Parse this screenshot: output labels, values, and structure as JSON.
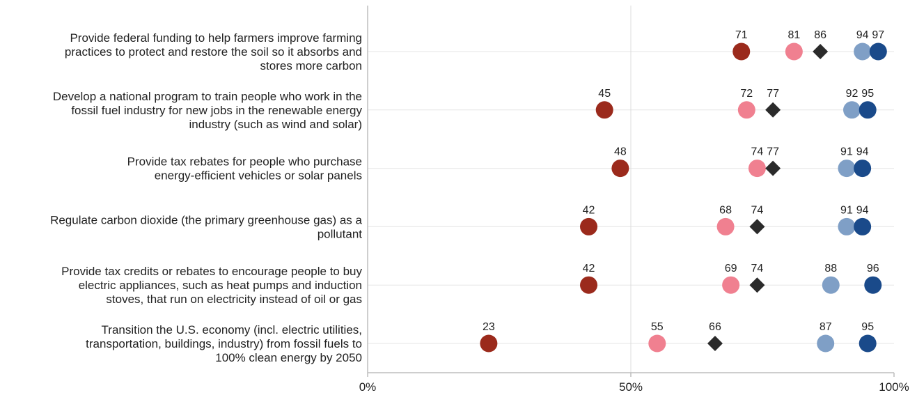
{
  "chart_data": {
    "type": "scatter",
    "title": "",
    "xlabel": "",
    "ylabel": "",
    "xlim": [
      0,
      100
    ],
    "x_ticks": [
      "0%",
      "50%",
      "100%"
    ],
    "grid": true,
    "legend": "none",
    "categories": [
      [
        "Provide federal funding to help farmers improve farming",
        "practices to protect and restore the soil so it absorbs and",
        "stores more carbon"
      ],
      [
        "Develop a national program to train people who work in the",
        "fossil fuel industry for new jobs in the renewable energy",
        "industry (such as wind and solar)"
      ],
      [
        "Provide tax rebates for people who purchase",
        "energy-efficient vehicles or solar panels"
      ],
      [
        "Regulate carbon dioxide (the primary greenhouse gas) as a",
        "pollutant"
      ],
      [
        "Provide tax credits or rebates to encourage people to buy",
        "electric appliances, such as heat pumps and induction",
        "stoves, that run on electricity instead of oil or gas"
      ],
      [
        "Transition the U.S. economy (incl. electric utilities,",
        "transportation, buildings, industry) from fossil fuels to",
        "100% clean energy by 2050"
      ]
    ],
    "series": [
      {
        "marker": "circle",
        "color": "#9b2a1c",
        "values": [
          71,
          45,
          48,
          42,
          42,
          23
        ]
      },
      {
        "marker": "circle",
        "color": "#f08090",
        "values": [
          81,
          72,
          74,
          68,
          69,
          55
        ]
      },
      {
        "marker": "diamond",
        "color": "#2b2b2b",
        "values": [
          86,
          77,
          77,
          74,
          74,
          66
        ]
      },
      {
        "marker": "circle",
        "color": "#7f9fc6",
        "values": [
          94,
          92,
          91,
          91,
          88,
          87
        ]
      },
      {
        "marker": "circle",
        "color": "#1a4a8a",
        "values": [
          97,
          95,
          94,
          94,
          96,
          95
        ]
      }
    ]
  }
}
